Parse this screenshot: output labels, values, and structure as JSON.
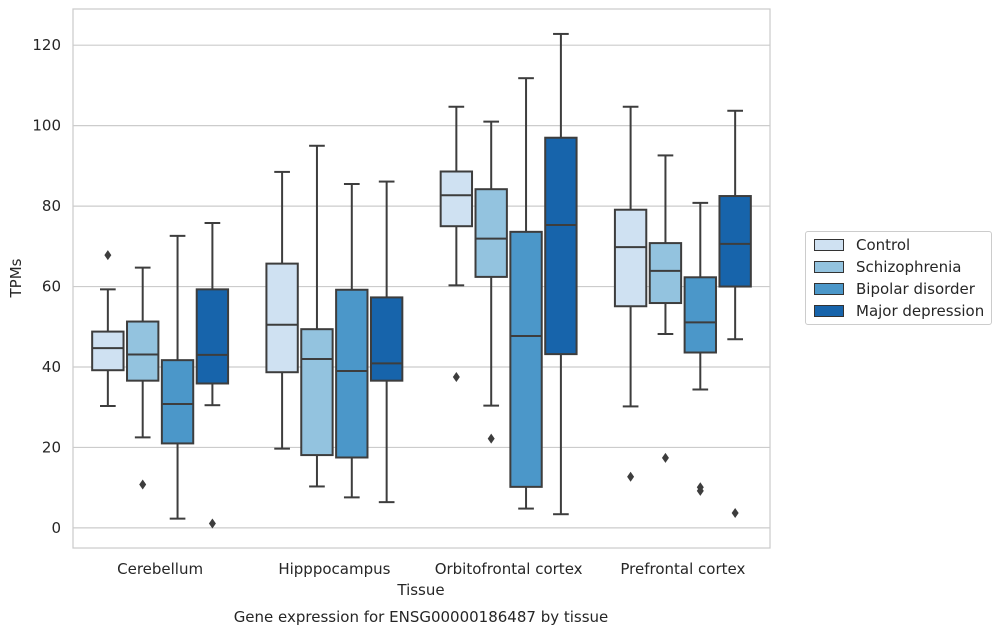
{
  "chart_data": {
    "type": "box",
    "title": "Gene expression for ENSG00000186487 by tissue",
    "xlabel": "Tissue",
    "ylabel": "TPMs",
    "ylim": [
      -5,
      129
    ],
    "yticks": [
      "0",
      "20",
      "40",
      "60",
      "80",
      "100",
      "120"
    ],
    "grid": "horizontal",
    "legend_position": "right",
    "categories": [
      "Cerebellum",
      "Hipppocampus",
      "Orbitofrontal cortex",
      "Prefrontal cortex"
    ],
    "series": [
      {
        "name": "Control",
        "color": "#cfe1f2",
        "boxes": [
          {
            "whisker_low": 30.3,
            "q1": 39.2,
            "median": 44.7,
            "q3": 48.8,
            "whisker_high": 59.3,
            "outliers": [
              67.8
            ]
          },
          {
            "whisker_low": 19.7,
            "q1": 38.7,
            "median": 50.5,
            "q3": 65.7,
            "whisker_high": 88.5,
            "outliers": []
          },
          {
            "whisker_low": 60.3,
            "q1": 75.0,
            "median": 82.7,
            "q3": 88.6,
            "whisker_high": 104.7,
            "outliers": [
              37.5
            ]
          },
          {
            "whisker_low": 30.2,
            "q1": 55.1,
            "median": 69.8,
            "q3": 79.1,
            "whisker_high": 104.7,
            "outliers": [
              12.7
            ]
          }
        ]
      },
      {
        "name": "Schizophrenia",
        "color": "#93c3df",
        "boxes": [
          {
            "whisker_low": 22.5,
            "q1": 36.6,
            "median": 43.1,
            "q3": 51.3,
            "whisker_high": 64.7,
            "outliers": [
              10.8
            ]
          },
          {
            "whisker_low": 10.3,
            "q1": 18.1,
            "median": 42.0,
            "q3": 49.4,
            "whisker_high": 95.0,
            "outliers": []
          },
          {
            "whisker_low": 30.4,
            "q1": 62.4,
            "median": 71.9,
            "q3": 84.2,
            "whisker_high": 101.0,
            "outliers": [
              22.2
            ]
          },
          {
            "whisker_low": 48.2,
            "q1": 55.9,
            "median": 63.9,
            "q3": 70.8,
            "whisker_high": 92.6,
            "outliers": [
              17.4
            ]
          }
        ]
      },
      {
        "name": "Bipolar disorder",
        "color": "#4b97c9",
        "boxes": [
          {
            "whisker_low": 2.3,
            "q1": 21.0,
            "median": 30.8,
            "q3": 41.7,
            "whisker_high": 72.6,
            "outliers": []
          },
          {
            "whisker_low": 7.6,
            "q1": 17.5,
            "median": 39.0,
            "q3": 59.2,
            "whisker_high": 85.5,
            "outliers": []
          },
          {
            "whisker_low": 4.8,
            "q1": 10.2,
            "median": 47.7,
            "q3": 73.6,
            "whisker_high": 111.8,
            "outliers": []
          },
          {
            "whisker_low": 34.4,
            "q1": 43.6,
            "median": 51.1,
            "q3": 62.3,
            "whisker_high": 80.8,
            "outliers": [
              10.1,
              9.2
            ]
          }
        ]
      },
      {
        "name": "Major depression",
        "color": "#1764ab",
        "boxes": [
          {
            "whisker_low": 30.5,
            "q1": 35.9,
            "median": 43.0,
            "q3": 59.3,
            "whisker_high": 75.8,
            "outliers": [
              1.1
            ]
          },
          {
            "whisker_low": 6.4,
            "q1": 36.6,
            "median": 40.9,
            "q3": 57.3,
            "whisker_high": 86.1,
            "outliers": []
          },
          {
            "whisker_low": 3.4,
            "q1": 43.2,
            "median": 75.3,
            "q3": 97.0,
            "whisker_high": 122.8,
            "outliers": []
          },
          {
            "whisker_low": 46.9,
            "q1": 60.0,
            "median": 70.6,
            "q3": 82.5,
            "whisker_high": 103.7,
            "outliers": [
              3.7
            ]
          }
        ]
      }
    ]
  }
}
